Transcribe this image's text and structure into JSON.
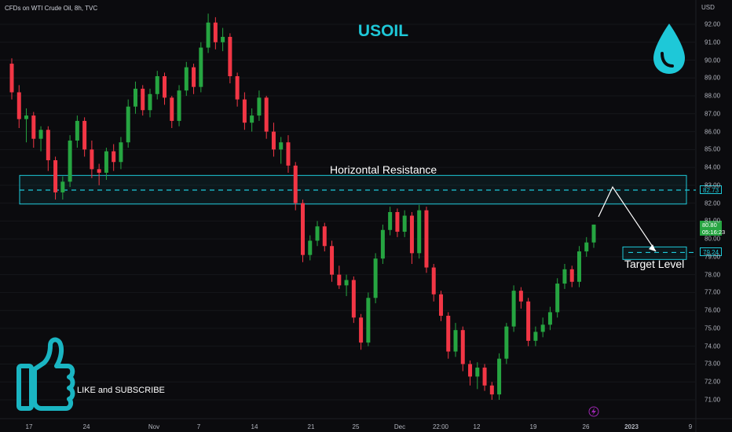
{
  "header": {
    "symbol_line": "CFDs on WTI Crude Oil, 8h, TVC"
  },
  "chart_data": {
    "type": "candlestick",
    "title": "USOIL",
    "currency_label": "USD",
    "ylim": [
      70.5,
      92.7
    ],
    "y_ticks": [
      "92.00",
      "91.00",
      "90.00",
      "89.00",
      "88.00",
      "87.00",
      "86.00",
      "85.00",
      "84.00",
      "83.00",
      "82.00",
      "81.00",
      "80.00",
      "79.00",
      "78.00",
      "77.00",
      "76.00",
      "75.00",
      "74.00",
      "73.00",
      "72.00",
      "71.00"
    ],
    "x_ticks": [
      "17",
      "24",
      "Nov",
      "7",
      "14",
      "21",
      "25",
      "Dec",
      "22:00",
      "12",
      "19",
      "26",
      "2023",
      "9"
    ],
    "colors": {
      "up": "#26a541",
      "down": "#f23645",
      "accent": "#1ec8d8",
      "background": "#0b0b0e"
    },
    "candles": [
      [
        89.8,
        90.1,
        87.8,
        88.2
      ],
      [
        88.2,
        88.6,
        86.2,
        86.7
      ],
      [
        86.7,
        87.3,
        85.4,
        86.9
      ],
      [
        86.9,
        87.1,
        85.1,
        85.6
      ],
      [
        85.6,
        86.3,
        84.9,
        86.1
      ],
      [
        86.1,
        86.3,
        83.8,
        84.4
      ],
      [
        84.4,
        84.6,
        82.2,
        82.6
      ],
      [
        82.6,
        83.5,
        82.2,
        83.2
      ],
      [
        83.2,
        85.8,
        82.9,
        85.5
      ],
      [
        85.5,
        86.9,
        85.1,
        86.6
      ],
      [
        86.6,
        86.8,
        84.6,
        85.0
      ],
      [
        85.0,
        85.5,
        83.4,
        83.9
      ],
      [
        83.9,
        84.2,
        83.0,
        83.7
      ],
      [
        83.7,
        85.1,
        83.3,
        84.9
      ],
      [
        84.9,
        85.3,
        83.8,
        84.3
      ],
      [
        84.3,
        85.7,
        83.9,
        85.4
      ],
      [
        85.4,
        87.8,
        85.1,
        87.4
      ],
      [
        87.4,
        88.8,
        87.0,
        88.4
      ],
      [
        88.4,
        88.6,
        86.9,
        87.2
      ],
      [
        87.2,
        88.4,
        86.8,
        88.1
      ],
      [
        88.1,
        89.4,
        87.8,
        89.1
      ],
      [
        89.1,
        89.3,
        87.5,
        87.9
      ],
      [
        87.9,
        88.0,
        86.2,
        86.6
      ],
      [
        86.6,
        88.6,
        86.3,
        88.3
      ],
      [
        88.3,
        89.9,
        88.0,
        89.6
      ],
      [
        89.6,
        89.8,
        88.1,
        88.5
      ],
      [
        88.5,
        91.0,
        88.2,
        90.7
      ],
      [
        90.7,
        92.6,
        90.4,
        92.1
      ],
      [
        92.1,
        92.4,
        90.6,
        91.0
      ],
      [
        91.0,
        91.8,
        90.5,
        91.3
      ],
      [
        91.3,
        91.5,
        88.7,
        89.1
      ],
      [
        89.1,
        89.3,
        87.4,
        87.8
      ],
      [
        87.8,
        88.2,
        86.1,
        86.5
      ],
      [
        86.5,
        87.3,
        86.0,
        86.9
      ],
      [
        86.9,
        88.3,
        86.6,
        87.9
      ],
      [
        87.9,
        88.0,
        85.6,
        86.0
      ],
      [
        86.0,
        86.5,
        84.6,
        85.0
      ],
      [
        85.0,
        85.7,
        84.2,
        85.4
      ],
      [
        85.4,
        85.8,
        83.7,
        84.1
      ],
      [
        84.1,
        84.3,
        81.6,
        82.0
      ],
      [
        82.0,
        82.2,
        78.7,
        79.1
      ],
      [
        79.1,
        80.2,
        78.8,
        79.9
      ],
      [
        79.9,
        81.0,
        79.6,
        80.7
      ],
      [
        80.7,
        80.9,
        79.3,
        79.6
      ],
      [
        79.6,
        79.9,
        77.6,
        78.0
      ],
      [
        78.0,
        78.5,
        77.2,
        77.4
      ],
      [
        77.4,
        78.0,
        76.8,
        77.7
      ],
      [
        77.7,
        77.9,
        75.3,
        75.6
      ],
      [
        75.6,
        75.8,
        73.8,
        74.2
      ],
      [
        74.2,
        77.0,
        74.0,
        76.7
      ],
      [
        76.7,
        79.2,
        76.4,
        78.9
      ],
      [
        78.9,
        80.8,
        78.6,
        80.5
      ],
      [
        80.5,
        81.8,
        80.2,
        81.5
      ],
      [
        81.5,
        81.7,
        80.1,
        80.4
      ],
      [
        80.4,
        81.6,
        80.1,
        81.3
      ],
      [
        81.3,
        81.5,
        78.6,
        79.2
      ],
      [
        79.2,
        81.9,
        78.9,
        81.6
      ],
      [
        81.6,
        81.8,
        78.1,
        78.4
      ],
      [
        78.4,
        78.6,
        76.5,
        76.9
      ],
      [
        76.9,
        77.1,
        75.4,
        75.7
      ],
      [
        75.7,
        75.9,
        73.3,
        73.7
      ],
      [
        73.7,
        75.3,
        73.4,
        74.9
      ],
      [
        74.9,
        75.1,
        72.6,
        73.0
      ],
      [
        73.0,
        73.2,
        71.8,
        72.3
      ],
      [
        72.3,
        73.1,
        71.6,
        72.8
      ],
      [
        72.8,
        73.0,
        71.5,
        71.8
      ],
      [
        71.8,
        72.0,
        71.0,
        71.3
      ],
      [
        71.3,
        73.6,
        71.0,
        73.3
      ],
      [
        73.3,
        75.3,
        73.0,
        75.1
      ],
      [
        75.1,
        77.4,
        74.8,
        77.1
      ],
      [
        77.1,
        77.3,
        76.1,
        76.5
      ],
      [
        76.5,
        76.7,
        74.0,
        74.3
      ],
      [
        74.3,
        75.1,
        74.0,
        74.8
      ],
      [
        74.8,
        75.6,
        74.5,
        75.2
      ],
      [
        75.2,
        76.2,
        74.9,
        75.9
      ],
      [
        75.9,
        77.8,
        75.6,
        77.5
      ],
      [
        77.5,
        78.6,
        77.2,
        78.3
      ],
      [
        78.3,
        78.5,
        77.3,
        77.6
      ],
      [
        77.6,
        79.6,
        77.3,
        79.3
      ],
      [
        79.3,
        80.1,
        79.0,
        79.8
      ],
      [
        79.8,
        80.8,
        79.5,
        80.8
      ]
    ],
    "resistance": {
      "label": "Horizontal Resistance",
      "value": "82.73",
      "zone": [
        81.95,
        83.55
      ]
    },
    "target": {
      "label": "Target Level",
      "value": "79.24",
      "zone": [
        78.85,
        79.55
      ]
    },
    "last_price": {
      "value": "80.80",
      "countdown": "05:16:23"
    }
  },
  "promo": {
    "text": "LIKE and SUBSCRIBE"
  }
}
